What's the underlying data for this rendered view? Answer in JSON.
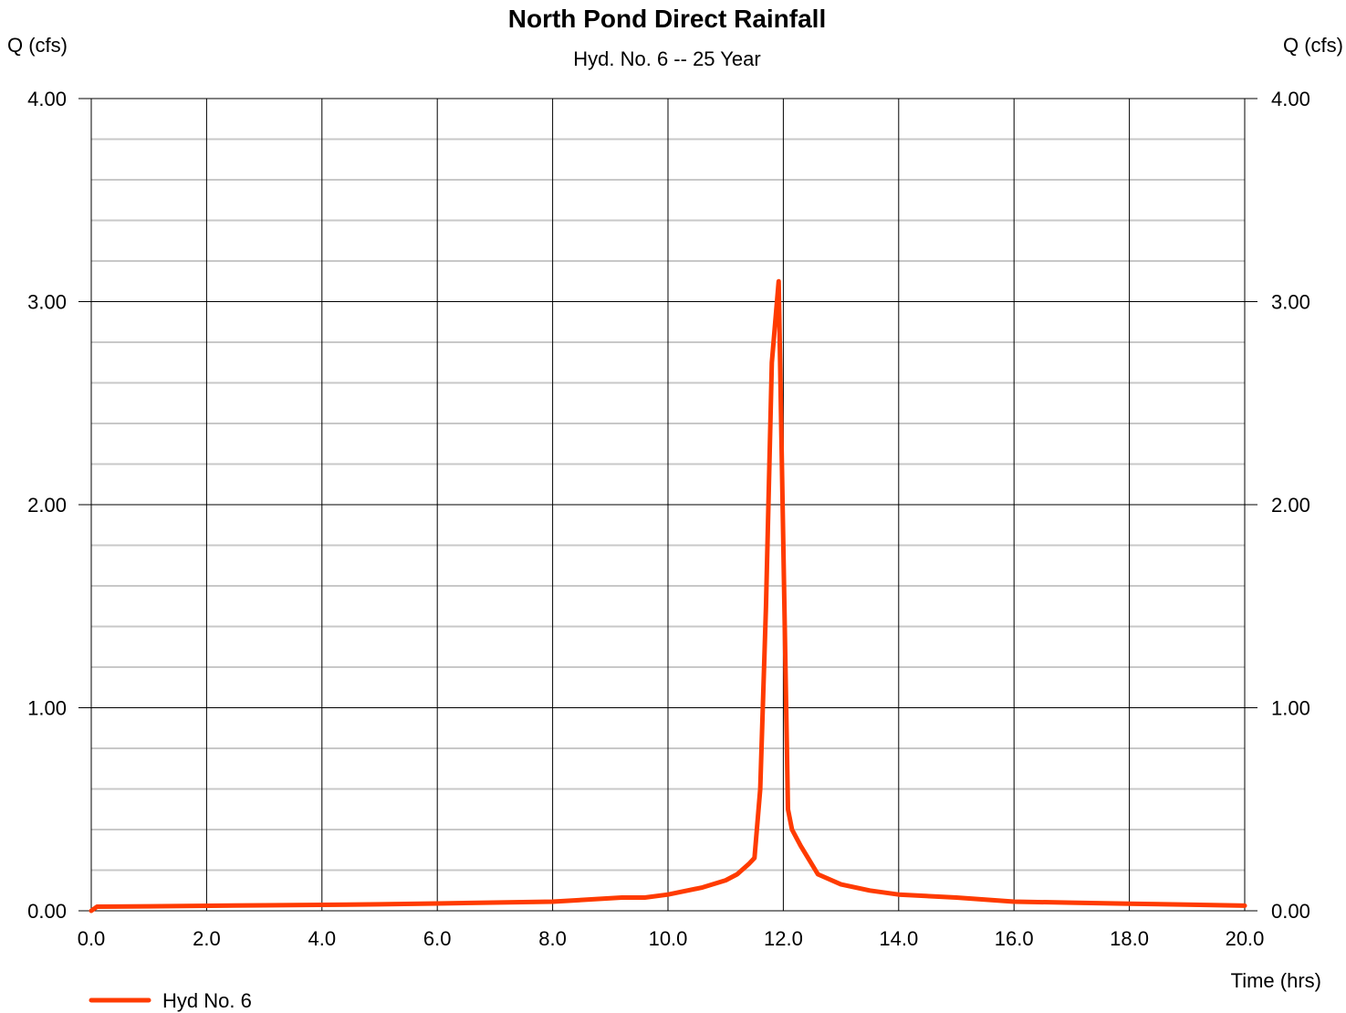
{
  "chart_data": {
    "type": "line",
    "title": "North Pond Direct Rainfall",
    "subtitle": "Hyd. No. 6 -- 25 Year",
    "ylabel_left": "Q (cfs)",
    "ylabel_right": "Q (cfs)",
    "xlabel": "Time (hrs)",
    "xlim": [
      0,
      20
    ],
    "ylim": [
      0,
      4
    ],
    "x_ticks": [
      "0.0",
      "2.0",
      "4.0",
      "6.0",
      "8.0",
      "10.0",
      "12.0",
      "14.0",
      "16.0",
      "18.0",
      "20.0"
    ],
    "y_ticks": [
      "0.00",
      "1.00",
      "2.00",
      "3.00",
      "4.00"
    ],
    "y_minor_step": 0.2,
    "grid": true,
    "legend_position": "bottom-left",
    "series": [
      {
        "name": "Hyd No. 6",
        "color": "#ff3b00",
        "x": [
          0.0,
          0.1,
          1.0,
          3.0,
          5.0,
          6.0,
          8.0,
          9.2,
          9.6,
          10.0,
          10.6,
          11.0,
          11.2,
          11.4,
          11.5,
          11.6,
          11.7,
          11.8,
          11.92,
          12.0,
          12.08,
          12.15,
          12.3,
          12.6,
          13.0,
          13.5,
          14.0,
          15.0,
          16.0,
          17.0,
          18.0,
          19.0,
          20.0
        ],
        "y": [
          0.0,
          0.02,
          0.022,
          0.027,
          0.032,
          0.036,
          0.045,
          0.065,
          0.065,
          0.08,
          0.115,
          0.15,
          0.18,
          0.23,
          0.26,
          0.6,
          1.5,
          2.7,
          3.1,
          1.8,
          0.5,
          0.4,
          0.32,
          0.18,
          0.13,
          0.1,
          0.08,
          0.065,
          0.045,
          0.04,
          0.035,
          0.03,
          0.025
        ]
      }
    ]
  }
}
